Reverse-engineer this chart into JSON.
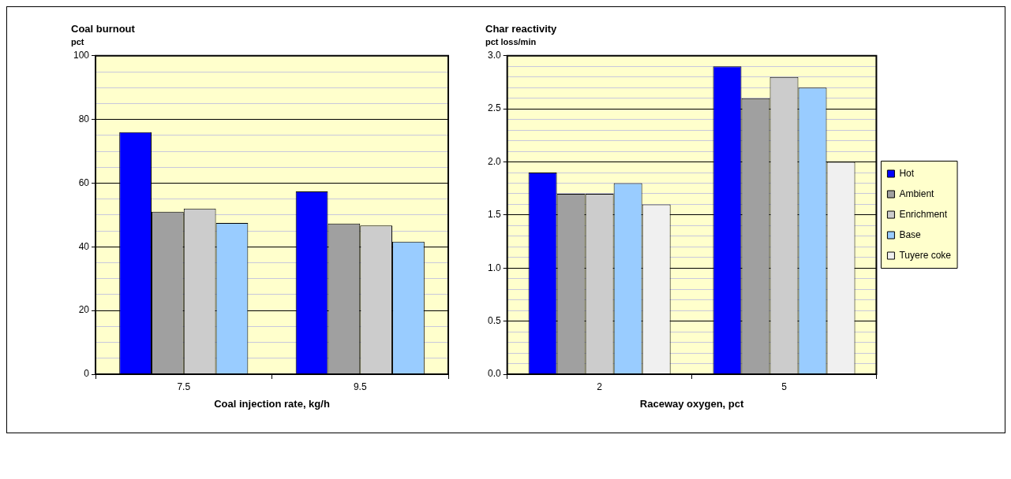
{
  "chart_data": [
    {
      "type": "bar",
      "title": "Coal burnout",
      "ylabel": "pct",
      "xlabel": "Coal injection rate, kg/h",
      "categories": [
        "7.5",
        "9.5"
      ],
      "series": [
        {
          "color": "#0000ff",
          "values": [
            76.0,
            57.4
          ]
        },
        {
          "color": "#a0a0a0",
          "values": [
            51.0,
            47.3
          ]
        },
        {
          "color": "#cccccc",
          "values": [
            52.0,
            46.7
          ]
        },
        {
          "color": "#99ccff",
          "values": [
            47.5,
            41.6
          ]
        }
      ],
      "ylim": [
        0,
        100
      ],
      "yticks": [
        0,
        {
          "value": 5,
          "label": null
        },
        {
          "value": 10,
          "label": null
        },
        {
          "value": 15,
          "label": null
        },
        20,
        {
          "value": 25,
          "label": null
        },
        {
          "value": 30,
          "label": null
        },
        {
          "value": 35,
          "label": null
        },
        40,
        {
          "value": 45,
          "label": null
        },
        {
          "value": 50,
          "label": null
        },
        {
          "value": 55,
          "label": null
        },
        60,
        {
          "value": 65,
          "label": null
        },
        {
          "value": 70,
          "label": null
        },
        {
          "value": 75,
          "label": null
        },
        80,
        {
          "value": 85,
          "label": null
        },
        {
          "value": 90,
          "label": null
        },
        {
          "value": 95,
          "label": null
        },
        100
      ],
      "grid": "y"
    },
    {
      "type": "bar",
      "title": "Char reactivity",
      "ylabel": "pct loss/min",
      "xlabel": "Raceway oxygen, pct",
      "categories": [
        "2",
        "5"
      ],
      "series": [
        {
          "name": "Hot",
          "color": "#0000ff",
          "values": [
            1.9,
            2.9
          ]
        },
        {
          "name": "Ambient",
          "color": "#a0a0a0",
          "values": [
            1.7,
            2.6
          ]
        },
        {
          "name": "Enrichment",
          "color": "#cccccc",
          "values": [
            1.7,
            2.8
          ]
        },
        {
          "name": "Base",
          "color": "#99ccff",
          "values": [
            1.8,
            2.7
          ]
        },
        {
          "name": "Tuyere coke",
          "color": "#f0f0f0",
          "values": [
            1.6,
            2.0
          ]
        }
      ],
      "ylim": [
        0,
        3
      ],
      "yticks": [
        {
          "value": 0,
          "label": "0.0"
        },
        {
          "value": 0.1,
          "label": null
        },
        {
          "value": 0.2,
          "label": null
        },
        {
          "value": 0.3,
          "label": null
        },
        {
          "value": 0.4,
          "label": null
        },
        {
          "value": 0.5,
          "label": "0.5"
        },
        {
          "value": 0.6,
          "label": null
        },
        {
          "value": 0.7,
          "label": null
        },
        {
          "value": 0.8,
          "label": null
        },
        {
          "value": 0.9,
          "label": null
        },
        {
          "value": 1,
          "label": "1.0"
        },
        {
          "value": 1.1,
          "label": null
        },
        {
          "value": 1.2,
          "label": null
        },
        {
          "value": 1.3,
          "label": null
        },
        {
          "value": 1.4,
          "label": null
        },
        {
          "value": 1.5,
          "label": "1.5"
        },
        {
          "value": 1.6,
          "label": null
        },
        {
          "value": 1.7,
          "label": null
        },
        {
          "value": 1.8,
          "label": null
        },
        {
          "value": 1.9,
          "label": null
        },
        {
          "value": 2,
          "label": "2.0"
        },
        {
          "value": 2.1,
          "label": null
        },
        {
          "value": 2.2,
          "label": null
        },
        {
          "value": 2.3,
          "label": null
        },
        {
          "value": 2.4,
          "label": null
        },
        {
          "value": 2.5,
          "label": "2.5"
        },
        {
          "value": 2.6,
          "label": null
        },
        {
          "value": 2.7,
          "label": null
        },
        {
          "value": 2.8,
          "label": null
        },
        {
          "value": 2.9,
          "label": null
        },
        {
          "value": 3,
          "label": "3.0"
        }
      ],
      "grid": "y",
      "legend": "right"
    }
  ]
}
